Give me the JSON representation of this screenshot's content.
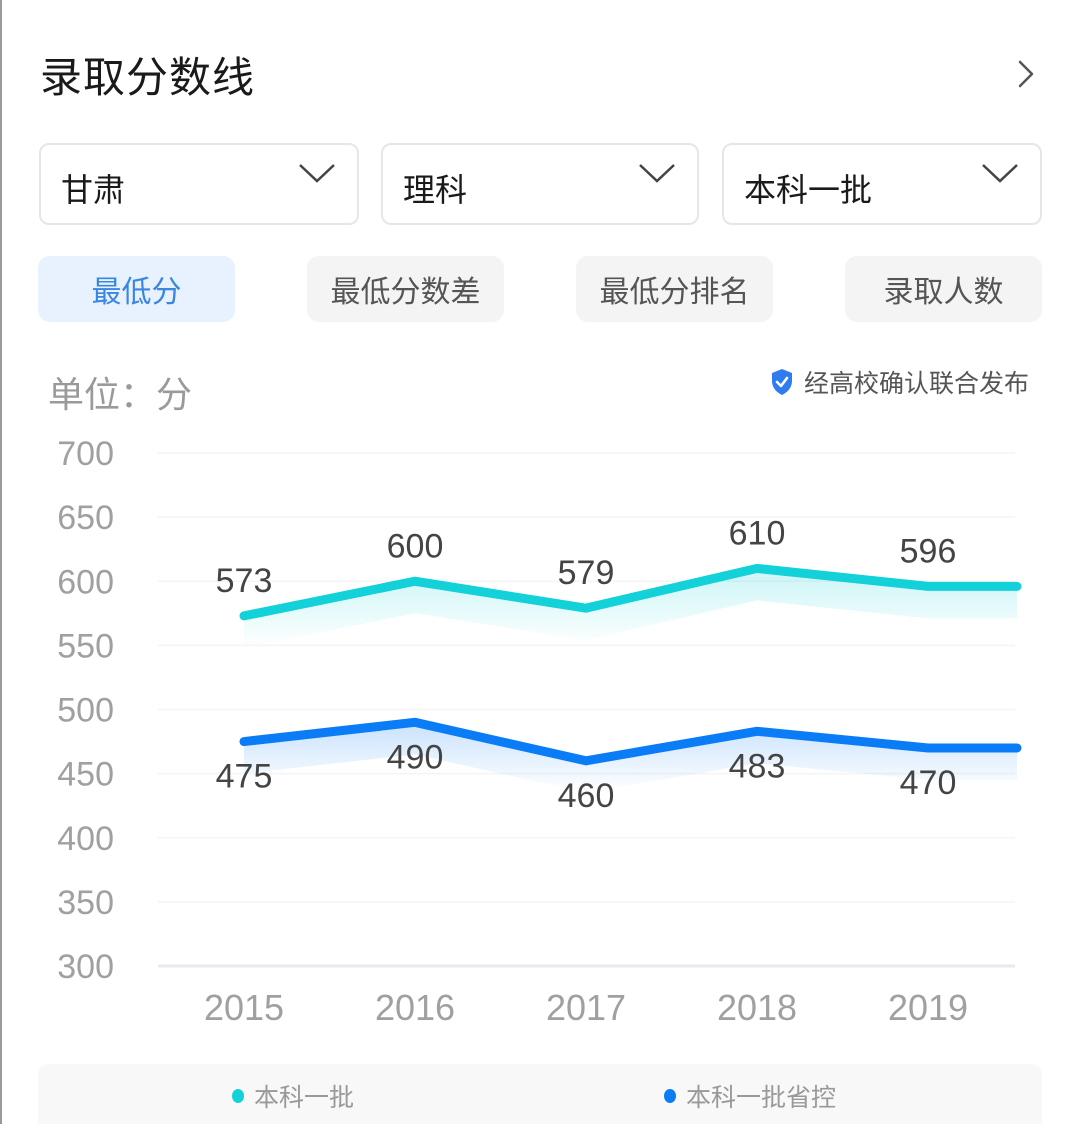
{
  "header": {
    "title": "录取分数线",
    "more_icon": "chevron-right-icon"
  },
  "filters": [
    {
      "label": "甘肃",
      "icon": "chevron-down-icon"
    },
    {
      "label": "理科",
      "icon": "chevron-down-icon"
    },
    {
      "label": "本科一批",
      "icon": "chevron-down-icon"
    }
  ],
  "tabs": [
    {
      "label": "最低分",
      "active": true
    },
    {
      "label": "最低分数差",
      "active": false
    },
    {
      "label": "最低分排名",
      "active": false
    },
    {
      "label": "录取人数",
      "active": false
    }
  ],
  "unit_label": "单位：分",
  "verified": {
    "icon": "shield-check-icon",
    "text": "经高校确认联合发布"
  },
  "colors": {
    "accent": "#3a86e0",
    "series1": "#12d1d8",
    "series2": "#0a7cf5",
    "active_tab_bg": "#e8f2fe"
  },
  "chart_data": {
    "type": "line",
    "title": "",
    "xlabel": "",
    "ylabel": "单位：分",
    "x": [
      "2015",
      "2016",
      "2017",
      "2018",
      "2019"
    ],
    "yticks": [
      700,
      650,
      600,
      550,
      500,
      450,
      400,
      350,
      300
    ],
    "ylim": [
      300,
      700
    ],
    "grid": true,
    "legend_position": "bottom",
    "series": [
      {
        "name": "本科一批",
        "color": "#12d1d8",
        "values": [
          573,
          600,
          579,
          610,
          596
        ]
      },
      {
        "name": "本科一批省控",
        "color": "#0a7cf5",
        "values": [
          475,
          490,
          460,
          483,
          470
        ]
      }
    ]
  }
}
